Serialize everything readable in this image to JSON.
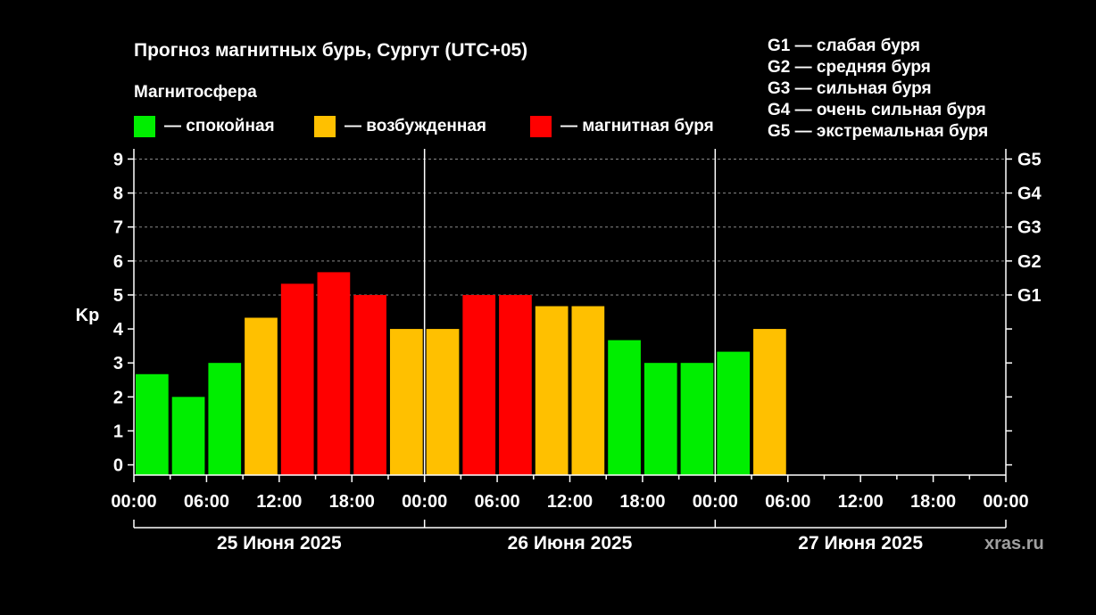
{
  "header": {
    "title": "Прогноз магнитных бурь, Сургут (UTC+05)",
    "subtitle": "Магнитосфера"
  },
  "legend": {
    "items": [
      {
        "label": "— спокойная",
        "color": "#00ee00"
      },
      {
        "label": "— возбужденная",
        "color": "#ffc000"
      },
      {
        "label": "— магнитная буря",
        "color": "#ff0000"
      }
    ]
  },
  "g_legend": [
    "G1 — слабая буря",
    "G2 — средняя буря",
    "G3 — сильная буря",
    "G4 — очень сильная буря",
    "G5 — экстремальная буря"
  ],
  "watermark": "xras.ru",
  "chart_data": {
    "type": "bar",
    "ylabel": "Kp",
    "ylim": [
      -0.3,
      9.3
    ],
    "y_ticks": [
      "0",
      "1",
      "2",
      "3",
      "4",
      "5",
      "6",
      "7",
      "8",
      "9"
    ],
    "right_axis_labels": [
      "G1",
      "G2",
      "G3",
      "G4",
      "G5"
    ],
    "x_tick_labels": [
      "00:00",
      "06:00",
      "12:00",
      "18:00",
      "00:00",
      "06:00",
      "12:00",
      "18:00",
      "00:00",
      "06:00",
      "12:00",
      "18:00",
      "00:00"
    ],
    "days": [
      "25 Июня 2025",
      "26 Июня 2025",
      "27 Июня 2025"
    ],
    "interval_hours": 3,
    "values": [
      2.67,
      2.0,
      3.0,
      4.33,
      5.33,
      5.67,
      5.0,
      4.0,
      4.0,
      5.0,
      5.0,
      4.67,
      4.67,
      3.67,
      3.0,
      3.0,
      3.33,
      4.0
    ],
    "colors": [
      "#00ee00",
      "#00ee00",
      "#00ee00",
      "#ffc000",
      "#ff0000",
      "#ff0000",
      "#ff0000",
      "#ffc000",
      "#ffc000",
      "#ff0000",
      "#ff0000",
      "#ffc000",
      "#ffc000",
      "#00ee00",
      "#00ee00",
      "#00ee00",
      "#00ee00",
      "#ffc000"
    ],
    "grid": "dashed horizontal lines at Kp 5-9",
    "legend_placement": "top"
  }
}
